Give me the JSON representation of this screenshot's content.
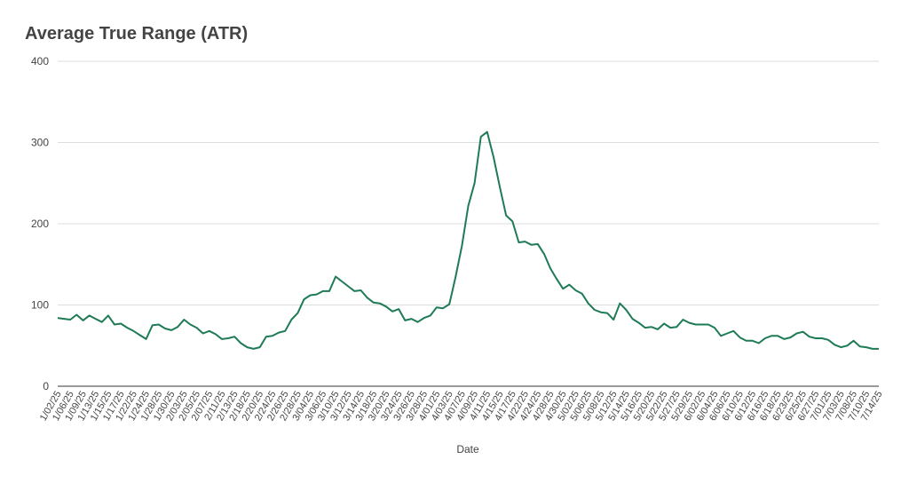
{
  "chart_data": {
    "type": "line",
    "title": "Average True Range (ATR)",
    "x_label": "Date",
    "categories": [
      "1/02/25",
      null,
      "1/06/25",
      null,
      "1/09/25",
      null,
      "1/13/25",
      null,
      "1/15/25",
      null,
      "1/17/25",
      null,
      "1/22/25",
      null,
      "1/24/25",
      null,
      "1/28/25",
      null,
      "1/30/25",
      null,
      "2/03/25",
      null,
      "2/05/25",
      null,
      "2/07/25",
      null,
      "2/11/25",
      null,
      "2/13/25",
      null,
      "2/18/25",
      null,
      "2/20/25",
      null,
      "2/24/25",
      null,
      "2/26/25",
      null,
      "2/28/25",
      null,
      "3/04/25",
      null,
      "3/06/25",
      null,
      "3/10/25",
      null,
      "3/12/25",
      null,
      "3/14/25",
      null,
      "3/18/25",
      null,
      "3/20/25",
      null,
      "3/24/25",
      null,
      "3/26/25",
      null,
      "3/28/25",
      null,
      "4/01/25",
      null,
      "4/03/25",
      null,
      "4/07/25",
      null,
      "4/09/25",
      null,
      "4/11/25",
      null,
      "4/15/25",
      null,
      "4/17/25",
      null,
      "4/22/25",
      null,
      "4/24/25",
      null,
      "4/28/25",
      null,
      "4/30/25",
      null,
      "5/02/25",
      null,
      "5/06/25",
      null,
      "5/08/25",
      null,
      "5/12/25",
      null,
      "5/14/25",
      null,
      "5/16/25",
      null,
      "5/20/25",
      null,
      "5/22/25",
      null,
      "5/27/25",
      null,
      "5/29/25",
      null,
      "6/02/25",
      null,
      "6/04/25",
      null,
      "6/06/25",
      null,
      "6/10/25",
      null,
      "6/12/25",
      null,
      "6/16/25",
      null,
      "6/18/25",
      null,
      "6/23/25",
      null,
      "6/25/25",
      null,
      "6/27/25",
      null,
      "7/01/25",
      null,
      "7/03/25",
      null,
      "7/08/25",
      null,
      "7/10/25",
      null,
      "7/14/25"
    ],
    "series": [
      {
        "name": "ATR",
        "color": "#1e7b55",
        "values": [
          84,
          83,
          82,
          88,
          81,
          87,
          83,
          79,
          87,
          76,
          77,
          72,
          68,
          63,
          58,
          75,
          76,
          71,
          69,
          73,
          82,
          76,
          72,
          65,
          68,
          64,
          58,
          59,
          61,
          53,
          48,
          46,
          48,
          61,
          62,
          66,
          68,
          82,
          90,
          107,
          112,
          113,
          117,
          117,
          135,
          129,
          123,
          117,
          118,
          109,
          103,
          102,
          98,
          92,
          95,
          81,
          83,
          79,
          84,
          87,
          97,
          96,
          101,
          135,
          173,
          222,
          250,
          307,
          313,
          282,
          245,
          210,
          203,
          177,
          178,
          174,
          175,
          163,
          145,
          132,
          120,
          125,
          118,
          114,
          102,
          94,
          91,
          90,
          82,
          102,
          94,
          83,
          78,
          72,
          73,
          70,
          77,
          72,
          73,
          82,
          78,
          76,
          76,
          76,
          72,
          62,
          65,
          68,
          60,
          56,
          56,
          53,
          59,
          62,
          62,
          58,
          60,
          65,
          67,
          61,
          59,
          59,
          57,
          51,
          48,
          50,
          56,
          49,
          48,
          46,
          46
        ]
      }
    ],
    "ylim": [
      0,
      400
    ],
    "yticks": [
      0,
      100,
      200,
      300,
      400
    ],
    "grid": true
  }
}
